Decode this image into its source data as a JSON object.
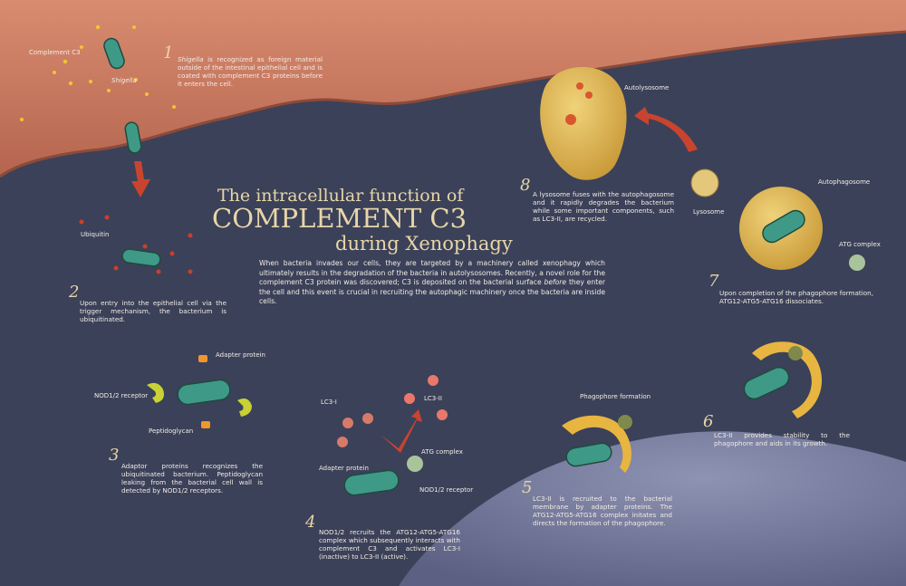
{
  "title": {
    "line1": "The intracellular function of",
    "line2": "COMPLEMENT C3",
    "line3": "during Xenophagy"
  },
  "intro": {
    "part1": "When bacteria invades our cells, they are targeted by a machinery called xenophagy which ultimately results in the degradation of the bacteria in autolysosomes. Recently, a novel role for the complement C3 protein was discovered; C3 is deposited on the bacterial surface ",
    "emphasis": "before",
    "part2": " they enter the cell and this event is crucial in recruiting the autophagic machinery once the bacteria are inside cells."
  },
  "steps": [
    {
      "number": "1",
      "italic": "Shigella",
      "text": " is recognized as foreign material outside of the intestinal epithelial cell and is coated with complement C3 proteins before it enters the cell."
    },
    {
      "number": "2",
      "text": "Upon entry into the epithelial cell via the trigger mechanism, the bacterium is ubiquitinated."
    },
    {
      "number": "3",
      "text": "Adaptor proteins recognizes the ubiquitinated bacterium. Peptidoglycan leaking from the bacterial cell wall is detected by NOD1/2 receptors."
    },
    {
      "number": "4",
      "text": "NOD1/2 recruits the ATG12-ATG5-ATG16 complex which subsequently interacts with complement C3 and activates LC3-I (inactive) to LC3-II (active)."
    },
    {
      "number": "5",
      "text": "LC3-II is recruited to the bacterial membrane by adapter proteins. The ATG12-ATG5-ATG16 complex initates and directs the formation of the phagophore."
    },
    {
      "number": "6",
      "text": "LC3-II provides stability to the phagophore and aids in its growth."
    },
    {
      "number": "7",
      "text": "Upon completion of the phagophore formation, ATG12-ATG5-ATG16 dissociates."
    },
    {
      "number": "8",
      "text": "A lysosome fuses with the autophagosome and it rapidly degrades the bacterium while some important components, such as LC3-II, are recycled."
    }
  ],
  "labels": {
    "complement_c3": "Complement C3",
    "shigella": "Shigella",
    "ubiquitin": "Ubiquitin",
    "adapter_protein_3": "Adapter protein",
    "nod_receptor_3": "NOD1/2 receptor",
    "peptidoglycan": "Peptidoglycan",
    "lc3_i": "LC3-I",
    "lc3_ii": "LC3-II",
    "atg_complex_4": "ATG complex",
    "adapter_protein_4": "Adapter protein",
    "nod_receptor_4": "NOD1/2 receptor",
    "phagophore_formation": "Phagophore formation",
    "autolysosome": "Autolysosome",
    "lysosome": "Lysosome",
    "autophagosome": "Autophagosome",
    "atg_complex_7": "ATG complex"
  },
  "colors": {
    "background": "#3b4159",
    "cell_membrane": "#c87a62",
    "nucleus": "#7e83a3",
    "bacterium": "#3e9a86",
    "complement": "#f0c534",
    "ubiquitin": "#c8402a",
    "phagophore": "#e8b540",
    "title": "#e8d6a8",
    "arrow": "#c8442e"
  }
}
